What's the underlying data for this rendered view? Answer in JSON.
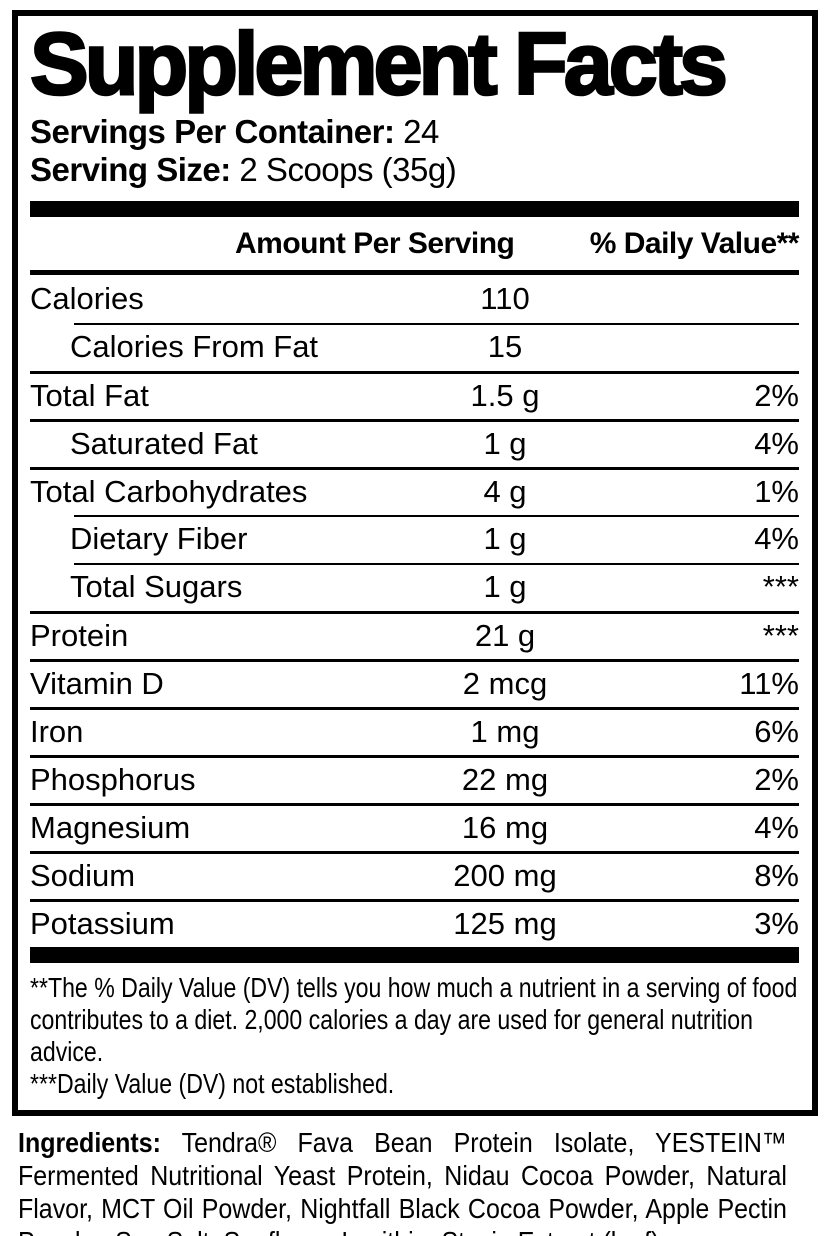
{
  "title": "Supplement Facts",
  "serving_info": {
    "servings_label": "Servings Per Container:",
    "servings_value": "24",
    "size_label": "Serving Size:",
    "size_value": "2 Scoops (35g)"
  },
  "table": {
    "col_amount": "Amount Per Serving",
    "col_dv": "% Daily Value**",
    "rows": [
      {
        "label": "Calories",
        "amount": "110",
        "dv": "",
        "indent": false
      },
      {
        "label": "Calories From Fat",
        "amount": "15",
        "dv": "",
        "indent": true
      },
      {
        "label": "Total Fat",
        "amount": "1.5 g",
        "dv": "2%",
        "indent": false
      },
      {
        "label": "Saturated Fat",
        "amount": "1 g",
        "dv": "4%",
        "indent": true
      },
      {
        "label": "Total Carbohydrates",
        "amount": "4 g",
        "dv": "1%",
        "indent": false
      },
      {
        "label": "Dietary Fiber",
        "amount": "1 g",
        "dv": "4%",
        "indent": true
      },
      {
        "label": "Total Sugars",
        "amount": "1 g",
        "dv": "***",
        "indent": true
      },
      {
        "label": "Protein",
        "amount": "21 g",
        "dv": "***",
        "indent": false
      },
      {
        "label": "Vitamin D",
        "amount": "2 mcg",
        "dv": "11%",
        "indent": false
      },
      {
        "label": "Iron",
        "amount": "1 mg",
        "dv": "6%",
        "indent": false
      },
      {
        "label": "Phosphorus",
        "amount": "22 mg",
        "dv": "2%",
        "indent": false
      },
      {
        "label": "Magnesium",
        "amount": "16 mg",
        "dv": "4%",
        "indent": false
      },
      {
        "label": "Sodium",
        "amount": "200 mg",
        "dv": "8%",
        "indent": false
      },
      {
        "label": "Potassium",
        "amount": "125 mg",
        "dv": "3%",
        "indent": false
      }
    ]
  },
  "footnotes": {
    "dv_note": "**The % Daily Value (DV) tells you how much a nutrient in a serving of food contributes to a diet. 2,000 calories a day are used for general nutrition advice.",
    "not_established_note": "***Daily Value (DV) not established."
  },
  "ingredients": {
    "label": "Ingredients:",
    "text": "Tendra® Fava Bean Protein Isolate, YESTEIN™ Fermented Nutritional Yeast Protein, Nidau Cocoa Powder, Natural Flavor, MCT Oil Powder, Nightfall Black Cocoa Powder, Apple Pectin Powder, Sea Salt, Sunflower Lecithin, Stevia Extract (leaf)."
  },
  "colors": {
    "ink": "#000000",
    "paper": "#ffffff"
  }
}
